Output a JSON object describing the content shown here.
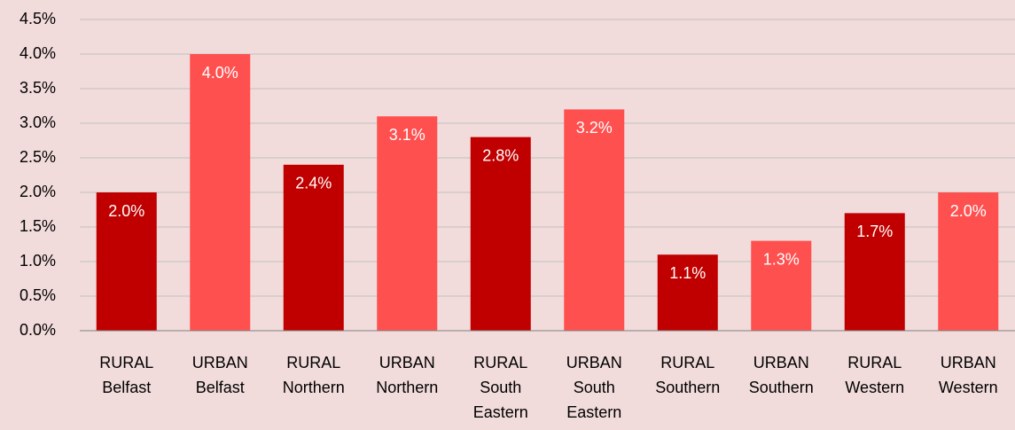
{
  "chart_data": {
    "type": "bar",
    "categories": [
      [
        "RURAL",
        "Belfast"
      ],
      [
        "URBAN",
        "Belfast"
      ],
      [
        "RURAL",
        "Northern"
      ],
      [
        "URBAN",
        "Northern"
      ],
      [
        "RURAL",
        "South",
        "Eastern"
      ],
      [
        "URBAN",
        "South",
        "Eastern"
      ],
      [
        "RURAL",
        "Southern"
      ],
      [
        "URBAN",
        "Southern"
      ],
      [
        "RURAL",
        "Western"
      ],
      [
        "URBAN",
        "Western"
      ]
    ],
    "values": [
      2.0,
      4.0,
      2.4,
      3.1,
      2.8,
      3.2,
      1.1,
      1.3,
      1.7,
      2.0
    ],
    "value_labels": [
      "2.0%",
      "4.0%",
      "2.4%",
      "3.1%",
      "2.8%",
      "3.2%",
      "1.1%",
      "1.3%",
      "1.7%",
      "2.0%"
    ],
    "colors": [
      "#c00000",
      "#ff5050",
      "#c00000",
      "#ff5050",
      "#c00000",
      "#ff5050",
      "#c00000",
      "#ff5050",
      "#c00000",
      "#ff5050"
    ],
    "ylim": [
      0,
      4.5
    ],
    "yticks": [
      {
        "value": 0,
        "label": "0.0%"
      },
      {
        "value": 0.5,
        "label": "0.5%"
      },
      {
        "value": 1,
        "label": "1.0%"
      },
      {
        "value": 1.5,
        "label": "1.5%"
      },
      {
        "value": 2,
        "label": "2.0%"
      },
      {
        "value": 2.5,
        "label": "2.5%"
      },
      {
        "value": 3,
        "label": "3.0%"
      },
      {
        "value": 3.5,
        "label": "3.5%"
      },
      {
        "value": 4,
        "label": "4.0%"
      },
      {
        "value": 4.5,
        "label": "4.5%"
      }
    ],
    "grid": true
  }
}
